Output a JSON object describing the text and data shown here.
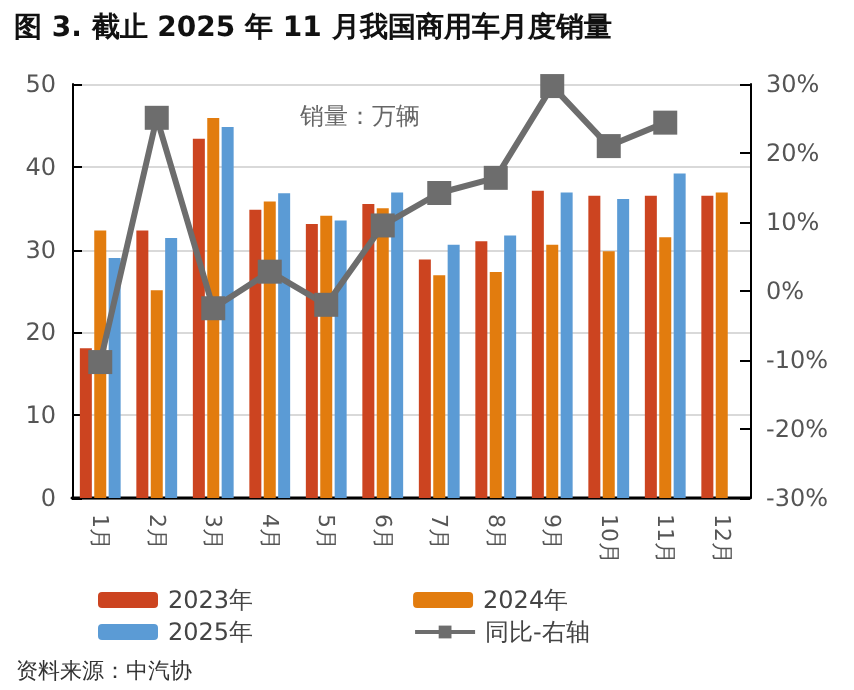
{
  "chart_data": {
    "type": "bar",
    "title": "图 3. 截止 2025 年 11 月我国商用车月度销量",
    "categories": [
      "1月",
      "2月",
      "3月",
      "4月",
      "5月",
      "6月",
      "7月",
      "8月",
      "9月",
      "10月",
      "11月",
      "12月"
    ],
    "series": [
      {
        "name": "2023年",
        "color": "#cc4420",
        "values": [
          18.1,
          32.3,
          43.4,
          34.8,
          33.1,
          35.5,
          28.8,
          31.0,
          37.1,
          36.5,
          36.5,
          36.5
        ]
      },
      {
        "name": "2024年",
        "color": "#e27c0e",
        "values": [
          32.3,
          25.1,
          45.9,
          35.8,
          34.1,
          35.0,
          26.9,
          27.3,
          30.6,
          29.8,
          31.5,
          36.9
        ]
      },
      {
        "name": "2025年",
        "color": "#5b9bd5",
        "values": [
          29.0,
          31.4,
          44.8,
          36.8,
          33.5,
          36.9,
          30.6,
          31.7,
          36.9,
          36.1,
          39.2,
          null
        ]
      },
      {
        "name": "同比-右轴",
        "type": "line",
        "axis": "y2",
        "color": "#6d6d6d",
        "marker": "square",
        "values": [
          -10.3,
          25.1,
          -2.5,
          2.8,
          -2.0,
          9.5,
          14.2,
          16.4,
          29.7,
          21.0,
          24.4,
          null
        ]
      }
    ],
    "ylim": [
      0,
      50
    ],
    "yticks": [
      0,
      10,
      20,
      30,
      40,
      50
    ],
    "y2lim": [
      -30,
      30
    ],
    "y2ticks": [
      {
        "value": -30,
        "label": "-30%"
      },
      {
        "value": -20,
        "label": "-20%"
      },
      {
        "value": -10,
        "label": "-10%"
      },
      {
        "value": 0,
        "label": "0%"
      },
      {
        "value": 10,
        "label": "10%"
      },
      {
        "value": 20,
        "label": "20%"
      },
      {
        "value": 30,
        "label": "30%"
      }
    ],
    "grid": "y",
    "legend": "bottom",
    "annotations": [
      "销量：万辆",
      "资料来源：中汽协"
    ]
  }
}
